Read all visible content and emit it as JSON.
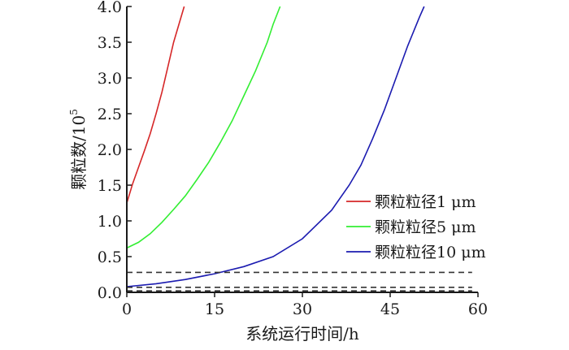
{
  "chart_data": {
    "type": "line",
    "xlabel": "系统运行时间/h",
    "ylabel": "颗粒数/10",
    "ylabel_superscript": "5",
    "xlim": [
      0,
      60
    ],
    "ylim": [
      0,
      4.0
    ],
    "x_ticks": [
      "0",
      "15",
      "30",
      "45",
      "60"
    ],
    "y_ticks": [
      "0.0",
      "0.5",
      "1.0",
      "1.5",
      "2.0",
      "2.5",
      "3.0",
      "3.5",
      "4.0"
    ],
    "grid": false,
    "legend_position": "right",
    "series": [
      {
        "name": "颗粒粒径1 μm",
        "color": "#d62728",
        "x": [
          0,
          1,
          2,
          3,
          4,
          5,
          6,
          7,
          8,
          9.8
        ],
        "y": [
          1.25,
          1.52,
          1.75,
          1.98,
          2.22,
          2.5,
          2.8,
          3.15,
          3.5,
          4.0
        ]
      },
      {
        "name": "颗粒粒径5 μm",
        "color": "#33ee33",
        "x": [
          0,
          2,
          4,
          6,
          8,
          10,
          12,
          14,
          16,
          18,
          20,
          22,
          24,
          25,
          26.2
        ],
        "y": [
          0.62,
          0.7,
          0.82,
          0.98,
          1.16,
          1.35,
          1.58,
          1.82,
          2.1,
          2.4,
          2.75,
          3.1,
          3.5,
          3.75,
          4.0
        ]
      },
      {
        "name": "颗粒粒径10 μm",
        "color": "#1b1bb0",
        "x": [
          0,
          5,
          10,
          15,
          20,
          25,
          30,
          35,
          38,
          40,
          42,
          44,
          46,
          48,
          50,
          50.8
        ],
        "y": [
          0.08,
          0.12,
          0.18,
          0.26,
          0.36,
          0.5,
          0.75,
          1.15,
          1.5,
          1.78,
          2.15,
          2.55,
          3.0,
          3.45,
          3.85,
          4.0
        ]
      },
      {
        "name": "",
        "style": "dashed",
        "color": "#333333",
        "x": [
          0,
          59
        ],
        "y": [
          0.28,
          0.28
        ]
      },
      {
        "name": "",
        "style": "dashed",
        "color": "#333333",
        "x": [
          0,
          59
        ],
        "y": [
          0.07,
          0.07
        ]
      },
      {
        "name": "",
        "style": "dashed",
        "color": "#333333",
        "x": [
          0,
          59
        ],
        "y": [
          0.02,
          0.02
        ]
      }
    ]
  }
}
